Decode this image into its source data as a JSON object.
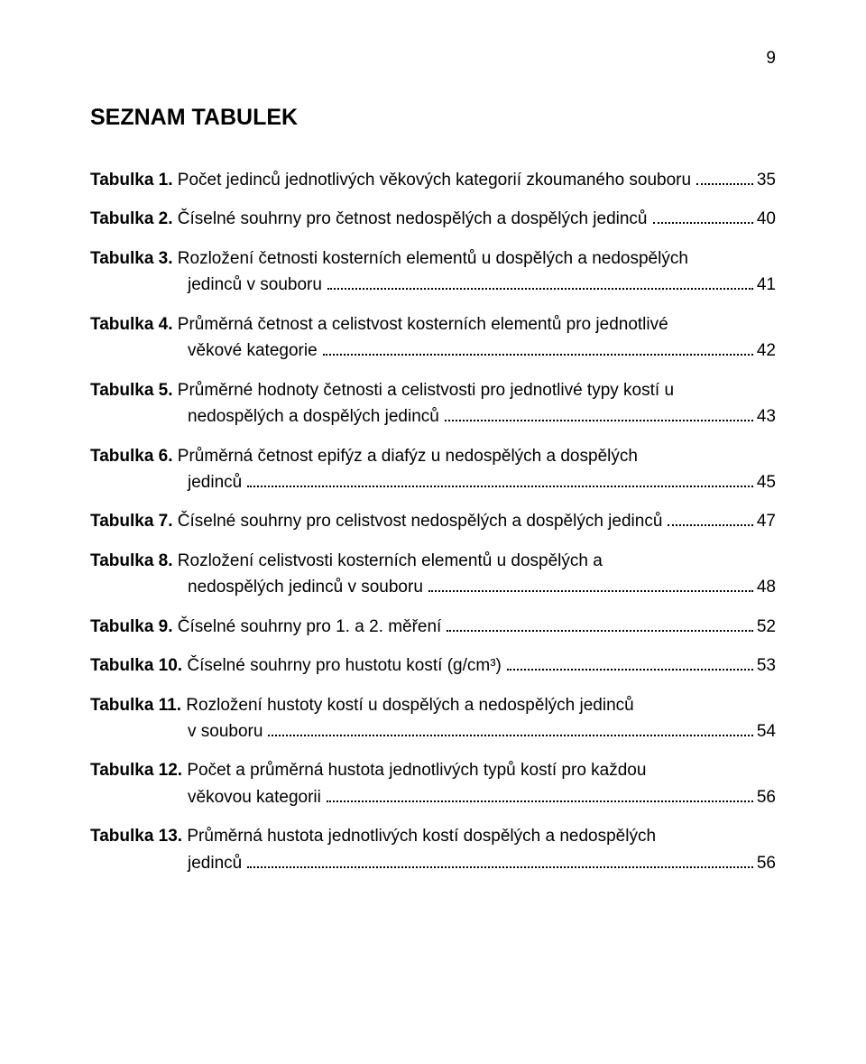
{
  "page_number": "9",
  "title": "SEZNAM TABULEK",
  "entries": [
    {
      "label": "Tabulka 1.",
      "text_head": "",
      "text_tail": "Počet jedinců jednotlivých věkových kategorií zkoumaného souboru",
      "page": "35"
    },
    {
      "label": "Tabulka 2.",
      "text_head": "",
      "text_tail": "Číselné souhrny pro četnost nedospělých a dospělých jedinců",
      "page": "40"
    },
    {
      "label": "Tabulka 3.",
      "text_head": "Rozložení četnosti kosterních elementů u dospělých a nedospělých",
      "text_tail": "jedinců v souboru",
      "page": "41",
      "indent_tail": true
    },
    {
      "label": "Tabulka 4.",
      "text_head": "Průměrná četnost a celistvost kosterních elementů pro jednotlivé",
      "text_tail": "věkové kategorie",
      "page": "42",
      "indent_tail": true
    },
    {
      "label": "Tabulka 5.",
      "text_head": "Průměrné hodnoty četnosti a celistvosti pro jednotlivé typy kostí u",
      "text_tail": "nedospělých a dospělých jedinců",
      "page": "43",
      "indent_tail": true
    },
    {
      "label": "Tabulka 6.",
      "text_head": "Průměrná četnost epifýz a diafýz u nedospělých a dospělých",
      "text_tail": "jedinců",
      "page": "45",
      "indent_tail": true
    },
    {
      "label": "Tabulka 7.",
      "text_head": "",
      "text_tail": "Číselné souhrny pro celistvost nedospělých a dospělých jedinců",
      "page": "47"
    },
    {
      "label": "Tabulka 8.",
      "text_head": "Rozložení celistvosti kosterních elementů u dospělých a",
      "text_tail": "nedospělých jedinců v souboru",
      "page": "48",
      "indent_tail": true
    },
    {
      "label": "Tabulka 9.",
      "text_head": "",
      "text_tail": "Číselné souhrny pro 1. a 2. měření",
      "page": "52"
    },
    {
      "label": "Tabulka 10.",
      "text_head": "",
      "text_tail": "Číselné souhrny pro hustotu kostí (g/cm³)",
      "page": "53"
    },
    {
      "label": "Tabulka 11.",
      "text_head": "Rozložení hustoty kostí u dospělých a nedospělých jedinců",
      "text_tail": "v souboru",
      "page": "54",
      "indent_tail": true
    },
    {
      "label": "Tabulka 12.",
      "text_head": "Počet a průměrná hustota jednotlivých typů kostí pro každou",
      "text_tail": "věkovou kategorii",
      "page": "56",
      "indent_tail": true
    },
    {
      "label": "Tabulka 13.",
      "text_head": "Průměrná hustota jednotlivých kostí dospělých a nedospělých",
      "text_tail": "jedinců",
      "page": "56",
      "indent_tail": true
    }
  ]
}
